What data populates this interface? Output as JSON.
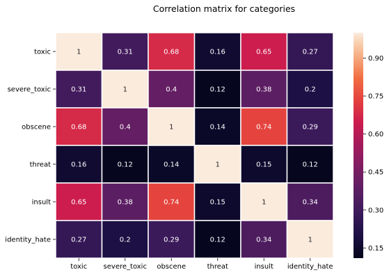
{
  "chart_data": {
    "type": "heatmap",
    "title": "Correlation matrix for categories",
    "rows": [
      "toxic",
      "severe_toxic",
      "obscene",
      "threat",
      "insult",
      "identity_hate"
    ],
    "columns": [
      "toxic",
      "severe_toxic",
      "obscene",
      "threat",
      "insult",
      "identity_hate"
    ],
    "values": [
      [
        1,
        0.31,
        0.68,
        0.16,
        0.65,
        0.27
      ],
      [
        0.31,
        1,
        0.4,
        0.12,
        0.38,
        0.2
      ],
      [
        0.68,
        0.4,
        1,
        0.14,
        0.74,
        0.29
      ],
      [
        0.16,
        0.12,
        0.14,
        1,
        0.15,
        0.12
      ],
      [
        0.65,
        0.38,
        0.74,
        0.15,
        1,
        0.34
      ],
      [
        0.27,
        0.2,
        0.29,
        0.12,
        0.34,
        1
      ]
    ],
    "colorbar": {
      "min": 0.11,
      "max": 1.0,
      "ticks": [
        "0.15",
        "0.30",
        "0.45",
        "0.60",
        "0.75",
        "0.90"
      ]
    },
    "colormap": "rocket",
    "annotated": true,
    "grid_lines_color": "#ffffff"
  }
}
